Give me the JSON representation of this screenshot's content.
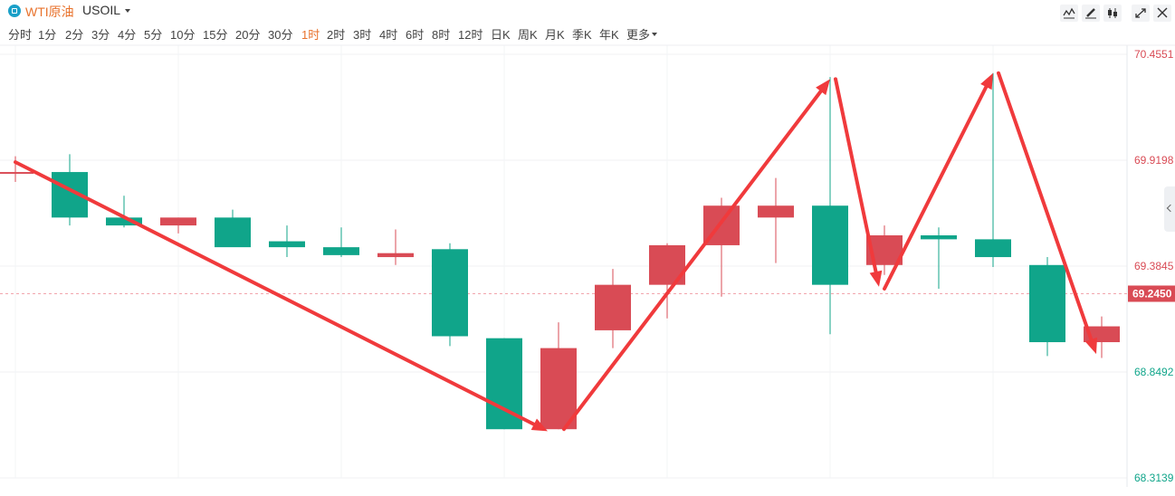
{
  "header": {
    "symbol_name": "WTI原油",
    "symbol_code": "USOIL",
    "periods": [
      {
        "label": "分时",
        "active": false
      },
      {
        "label": "1分",
        "active": false
      },
      {
        "label": "2分",
        "active": false
      },
      {
        "label": "3分",
        "active": false
      },
      {
        "label": "4分",
        "active": false
      },
      {
        "label": "5分",
        "active": false
      },
      {
        "label": "10分",
        "active": false
      },
      {
        "label": "15分",
        "active": false
      },
      {
        "label": "20分",
        "active": false
      },
      {
        "label": "30分",
        "active": false
      },
      {
        "label": "1时",
        "active": true
      },
      {
        "label": "2时",
        "active": false
      },
      {
        "label": "3时",
        "active": false
      },
      {
        "label": "4时",
        "active": false
      },
      {
        "label": "6时",
        "active": false
      },
      {
        "label": "8时",
        "active": false
      },
      {
        "label": "12时",
        "active": false
      },
      {
        "label": "日K",
        "active": false
      },
      {
        "label": "周K",
        "active": false
      },
      {
        "label": "月K",
        "active": false
      },
      {
        "label": "季K",
        "active": false
      },
      {
        "label": "年K",
        "active": false
      },
      {
        "label": "更多",
        "active": false
      }
    ],
    "tools": [
      "line-chart-icon",
      "pencil-icon",
      "candlestick-icon",
      "expand-icon",
      "close-icon"
    ]
  },
  "colors": {
    "up": "#d94b55",
    "down": "#10a58a",
    "accent": "#e8722c",
    "arrow": "#f03a3c",
    "current_price": "#d94b55"
  },
  "chart_data": {
    "type": "candlestick",
    "ylim": [
      68.3139,
      70.4551
    ],
    "y_ticks": [
      "70.4551",
      "69.9198",
      "69.3845",
      "68.8492",
      "68.3139"
    ],
    "current_price": "69.2450",
    "candles": [
      {
        "open": 69.86,
        "high": 69.94,
        "low": 69.81,
        "close": 69.86
      },
      {
        "open": 69.86,
        "high": 69.95,
        "low": 69.59,
        "close": 69.63
      },
      {
        "open": 69.63,
        "high": 69.74,
        "low": 69.58,
        "close": 69.59
      },
      {
        "open": 69.59,
        "high": 69.63,
        "low": 69.55,
        "close": 69.63
      },
      {
        "open": 69.63,
        "high": 69.67,
        "low": 69.49,
        "close": 69.48
      },
      {
        "open": 69.51,
        "high": 69.59,
        "low": 69.43,
        "close": 69.48
      },
      {
        "open": 69.48,
        "high": 69.58,
        "low": 69.43,
        "close": 69.44
      },
      {
        "open": 69.43,
        "high": 69.57,
        "low": 69.39,
        "close": 69.45
      },
      {
        "open": 69.47,
        "high": 69.5,
        "low": 68.98,
        "close": 69.03
      },
      {
        "open": 69.02,
        "high": 69.02,
        "low": 68.56,
        "close": 68.56
      },
      {
        "open": 68.56,
        "high": 69.1,
        "low": 68.56,
        "close": 68.97
      },
      {
        "open": 69.06,
        "high": 69.37,
        "low": 68.97,
        "close": 69.29
      },
      {
        "open": 69.29,
        "high": 69.5,
        "low": 69.12,
        "close": 69.49
      },
      {
        "open": 69.49,
        "high": 69.73,
        "low": 69.23,
        "close": 69.69
      },
      {
        "open": 69.63,
        "high": 69.83,
        "low": 69.4,
        "close": 69.69
      },
      {
        "open": 69.69,
        "high": 70.34,
        "low": 69.04,
        "close": 69.29
      },
      {
        "open": 69.39,
        "high": 69.59,
        "low": 69.34,
        "close": 69.54
      },
      {
        "open": 69.54,
        "high": 69.58,
        "low": 69.27,
        "close": 69.52
      },
      {
        "open": 69.52,
        "high": 70.36,
        "low": 69.38,
        "close": 69.43
      },
      {
        "open": 69.39,
        "high": 69.43,
        "low": 68.93,
        "close": 69.0
      },
      {
        "open": 69.0,
        "high": 69.13,
        "low": 68.92,
        "close": 69.08
      }
    ],
    "annotations": [
      {
        "from": [
          0,
          69.91
        ],
        "to": [
          9.8,
          68.55
        ],
        "thick": true
      },
      {
        "from": [
          10.1,
          68.56
        ],
        "to": [
          15,
          70.33
        ],
        "thick": true
      },
      {
        "from": [
          15.1,
          70.33
        ],
        "to": [
          15.9,
          69.28
        ],
        "thick": true
      },
      {
        "from": [
          16,
          69.27
        ],
        "to": [
          18,
          70.36
        ],
        "thick": true
      },
      {
        "from": [
          18.1,
          70.36
        ],
        "to": [
          19.9,
          68.94
        ],
        "thick": true
      }
    ]
  }
}
